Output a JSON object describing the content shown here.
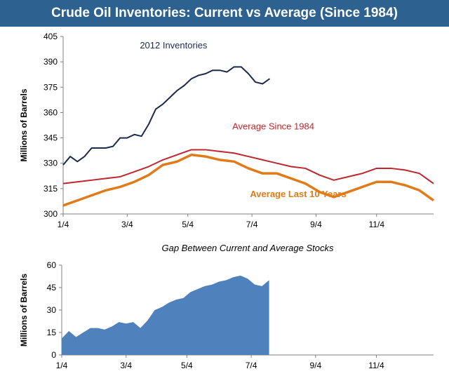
{
  "title": "Crude Oil Inventories: Current vs Average (Since 1984)",
  "colors": {
    "banner": "#2d6190",
    "current": "#1b2b4e",
    "avg1984": "#c0272d",
    "avg10": "#e07b18",
    "area": "#4f81bd"
  },
  "chart_data": [
    {
      "type": "line",
      "title": "",
      "xlabel": "",
      "ylabel": "Millions of Barrels",
      "ylim": [
        300,
        405
      ],
      "yticks": [
        300,
        315,
        330,
        345,
        360,
        375,
        390,
        405
      ],
      "xlim": [
        0,
        52
      ],
      "xticks": [
        {
          "x": 0,
          "label": "1/4"
        },
        {
          "x": 9,
          "label": "3/4"
        },
        {
          "x": 17.5,
          "label": "5/4"
        },
        {
          "x": 26.5,
          "label": "7/4"
        },
        {
          "x": 35.5,
          "label": "9/4"
        },
        {
          "x": 44,
          "label": "11/4"
        }
      ],
      "series": [
        {
          "name": "2012 Inventories",
          "color_key": "current",
          "points": [
            [
              0,
              329
            ],
            [
              1,
              334
            ],
            [
              2,
              331
            ],
            [
              3,
              334
            ],
            [
              4,
              339
            ],
            [
              5,
              339
            ],
            [
              6,
              339
            ],
            [
              7,
              340
            ],
            [
              8,
              345
            ],
            [
              9,
              345
            ],
            [
              10,
              347
            ],
            [
              11,
              346
            ],
            [
              12,
              353
            ],
            [
              13,
              362
            ],
            [
              14,
              365
            ],
            [
              15,
              369
            ],
            [
              16,
              373
            ],
            [
              17,
              376
            ],
            [
              18,
              380
            ],
            [
              19,
              382
            ],
            [
              20,
              383
            ],
            [
              21,
              385
            ],
            [
              22,
              385
            ],
            [
              23,
              384
            ],
            [
              24,
              387
            ],
            [
              25,
              387
            ],
            [
              26,
              383
            ],
            [
              27,
              378
            ],
            [
              28,
              377
            ],
            [
              29,
              380
            ]
          ]
        },
        {
          "name": "Average Since 1984",
          "color_key": "avg1984",
          "points": [
            [
              0,
              318
            ],
            [
              2,
              319
            ],
            [
              4,
              320
            ],
            [
              6,
              321
            ],
            [
              8,
              322
            ],
            [
              10,
              325
            ],
            [
              12,
              328
            ],
            [
              14,
              332
            ],
            [
              16,
              335
            ],
            [
              18,
              338
            ],
            [
              20,
              338
            ],
            [
              22,
              337
            ],
            [
              24,
              336
            ],
            [
              26,
              334
            ],
            [
              28,
              332
            ],
            [
              30,
              330
            ],
            [
              32,
              328
            ],
            [
              34,
              327
            ],
            [
              36,
              323
            ],
            [
              38,
              320
            ],
            [
              40,
              322
            ],
            [
              42,
              324
            ],
            [
              44,
              327
            ],
            [
              46,
              327
            ],
            [
              48,
              326
            ],
            [
              50,
              324
            ],
            [
              52,
              318
            ]
          ]
        },
        {
          "name": "Average Last 10 Years",
          "color_key": "avg10",
          "points": [
            [
              0,
              305
            ],
            [
              2,
              308
            ],
            [
              4,
              311
            ],
            [
              6,
              314
            ],
            [
              8,
              316
            ],
            [
              10,
              319
            ],
            [
              12,
              323
            ],
            [
              14,
              329
            ],
            [
              16,
              331
            ],
            [
              18,
              335
            ],
            [
              20,
              334
            ],
            [
              22,
              332
            ],
            [
              24,
              331
            ],
            [
              26,
              327
            ],
            [
              28,
              324
            ],
            [
              30,
              324
            ],
            [
              32,
              321
            ],
            [
              34,
              318
            ],
            [
              36,
              313
            ],
            [
              38,
              310
            ],
            [
              40,
              313
            ],
            [
              42,
              316
            ],
            [
              44,
              319
            ],
            [
              46,
              319
            ],
            [
              48,
              317
            ],
            [
              50,
              314
            ],
            [
              52,
              308
            ]
          ]
        }
      ],
      "annotations": [
        {
          "text": "2012 Inventories",
          "color_key": "current",
          "x": 15.5,
          "y": 398
        },
        {
          "text": "Average Since 1984",
          "color_key": "avg1984",
          "x": 29.5,
          "y": 350
        },
        {
          "text": "Average Last 10 Years",
          "color_key": "avg10",
          "x": 33,
          "y": 310
        }
      ]
    },
    {
      "type": "area",
      "title": "Gap Between Current and Average Stocks",
      "xlabel": "",
      "ylabel": "Millions of Barrels",
      "ylim": [
        0,
        60
      ],
      "yticks": [
        0,
        15,
        30,
        45,
        60
      ],
      "xlim": [
        0,
        52
      ],
      "xticks": [
        {
          "x": 0,
          "label": "1/4"
        },
        {
          "x": 9,
          "label": "3/4"
        },
        {
          "x": 17.5,
          "label": "5/4"
        },
        {
          "x": 26.5,
          "label": "7/4"
        },
        {
          "x": 35.5,
          "label": "9/4"
        },
        {
          "x": 44,
          "label": "11/4"
        }
      ],
      "series": [
        {
          "name": "Gap",
          "color_key": "area",
          "points": [
            [
              0,
              11
            ],
            [
              1,
              16
            ],
            [
              2,
              12
            ],
            [
              3,
              15
            ],
            [
              4,
              18
            ],
            [
              5,
              18
            ],
            [
              6,
              17
            ],
            [
              7,
              19
            ],
            [
              8,
              22
            ],
            [
              9,
              21
            ],
            [
              10,
              22
            ],
            [
              11,
              18
            ],
            [
              12,
              23
            ],
            [
              13,
              30
            ],
            [
              14,
              32
            ],
            [
              15,
              35
            ],
            [
              16,
              37
            ],
            [
              17,
              38
            ],
            [
              18,
              42
            ],
            [
              19,
              44
            ],
            [
              20,
              46
            ],
            [
              21,
              47
            ],
            [
              22,
              49
            ],
            [
              23,
              50
            ],
            [
              24,
              52
            ],
            [
              25,
              53
            ],
            [
              26,
              51
            ],
            [
              27,
              47
            ],
            [
              28,
              46
            ],
            [
              29,
              50
            ]
          ]
        }
      ]
    }
  ]
}
